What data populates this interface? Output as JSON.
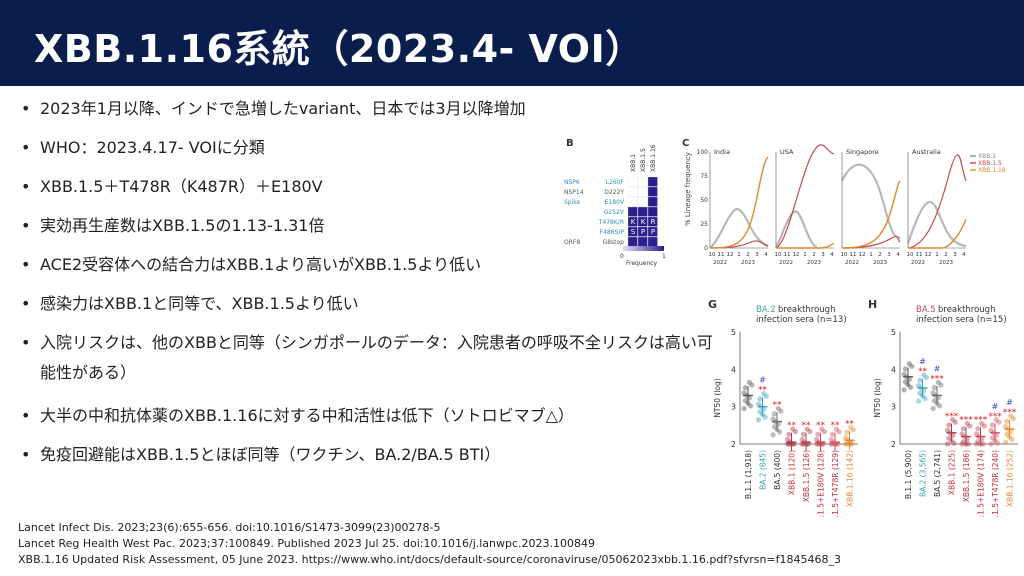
{
  "slide": {
    "title": "XBB.1.16系統（2023.4- VOI）"
  },
  "bullets": [
    "2023年1月以降、インドで急増したvariant、日本では3月以降増加",
    "WHO：2023.4.17- VOIに分類",
    "XBB.1.5＋T478R（K487R）＋E180V",
    "実効再生産数はXBB.1.5の1.13-1.31倍",
    "ACE2受容体への結合力はXBB.1より高いがXBB.1.5より低い",
    "感染力はXBB.1と同等で、XBB.1.5より低い",
    "入院リスクは、他のXBBと同等（シンガポールのデータ：入院患者の呼吸不全リスクは高い可能性がある）",
    "大半の中和抗体薬のXBB.1.16に対する中和活性は低下（ソトロビマブ△）",
    "免疫回避能はXBB.1.5とほぼ同等（ワクチン、BA.2/BA.5 BTI）"
  ],
  "bullet_char": "•",
  "references": [
    "Lancet Infect Dis. 2023;23(6):655-656. doi:10.1016/S1473-3099(23)00278-5",
    "Lancet Reg Health West Pac. 2023;37:100849. Published 2023 Jul 25. doi:10.1016/j.lanwpc.2023.100849",
    "XBB.1.16 Updated Risk Assessment, 05 June 2023. https://www.who.int/docs/default-source/coronaviruse/05062023xbb.1.16.pdf?sfvrsn=f1845468_3"
  ],
  "panel_b": {
    "label": "B",
    "columns": [
      "XBB.1",
      "XBB.1.5",
      "XBB.1.16"
    ],
    "rows": [
      {
        "gene": "NSP6",
        "mut": "L260F"
      },
      {
        "gene": "NSP14",
        "mut": "D222Y"
      },
      {
        "gene": "Spike",
        "mut": "E180V"
      },
      {
        "gene": "",
        "mut": "G252V"
      },
      {
        "gene": "",
        "mut": "T478K/R"
      },
      {
        "gene": "",
        "mut": "F486S/P"
      },
      {
        "gene": "ORF8",
        "mut": "G8stop"
      }
    ],
    "letters_row1": [
      "K",
      "K",
      "R"
    ],
    "letters_row2": [
      "S",
      "P",
      "P"
    ],
    "colorbar": {
      "min": "0",
      "max": "1",
      "label": "Frequency"
    }
  },
  "panel_c": {
    "label": "C",
    "ylabel": "% Lineage frequency",
    "yticks": [
      "0",
      "25",
      "50",
      "75",
      "100"
    ],
    "panels": [
      "India",
      "USA",
      "Singapore",
      "Australia"
    ],
    "xticks": [
      "10",
      "11",
      "12",
      "1",
      "2",
      "3",
      "4"
    ],
    "years": [
      "2022",
      "2023"
    ],
    "legend": [
      "XBB.1",
      "XBB.1.5",
      "XBB.1.16"
    ],
    "colors": {
      "xbb1": "#888888",
      "xbb15": "#c44a4a",
      "xbb116": "#e08a2a"
    }
  },
  "panel_g": {
    "label": "G",
    "title_strong": "BA.2",
    "title_rest": " breakthrough",
    "title_line2": "infection sera (n=13)",
    "ylabel": "NT50 (log)",
    "yticks": [
      "2",
      "3",
      "4",
      "5"
    ],
    "categories": [
      "B.1.1 (1,918)",
      "BA.2 (845)",
      "BA.5 (400)",
      "XBB.1 (120)",
      "XBB.1.5 (126)",
      "XBB.1.5+E180V (128)",
      "XBB.1.5+T478R (129)",
      "XBB.1.16 (142)"
    ],
    "sig_hash": [
      "",
      "#",
      "",
      "",
      "",
      "",
      "",
      ""
    ],
    "sig_star": [
      "",
      "**",
      "**",
      "**",
      "**",
      "**",
      "**",
      "**"
    ]
  },
  "panel_h": {
    "label": "H",
    "title_strong": "BA.5",
    "title_rest": " breakthrough",
    "title_line2": "infection sera (n=15)",
    "ylabel": "NT50 (log)",
    "yticks": [
      "2",
      "3",
      "4",
      "5"
    ],
    "categories": [
      "B.1.1 (5,900)",
      "BA.2 (3,565)",
      "BA.5 (2,741)",
      "XBB.1 (225)",
      "XBB.1.5 (186)",
      "XBB.1.5+E180V (174)",
      "XBB.1.5+T478R (240)",
      "XBB.1.16 (252)"
    ],
    "sig_hash": [
      "",
      "#",
      "#",
      "",
      "",
      "",
      "#",
      "#"
    ],
    "sig_star": [
      "",
      "**",
      "***",
      "***",
      "***",
      "***",
      "***",
      "***"
    ]
  }
}
